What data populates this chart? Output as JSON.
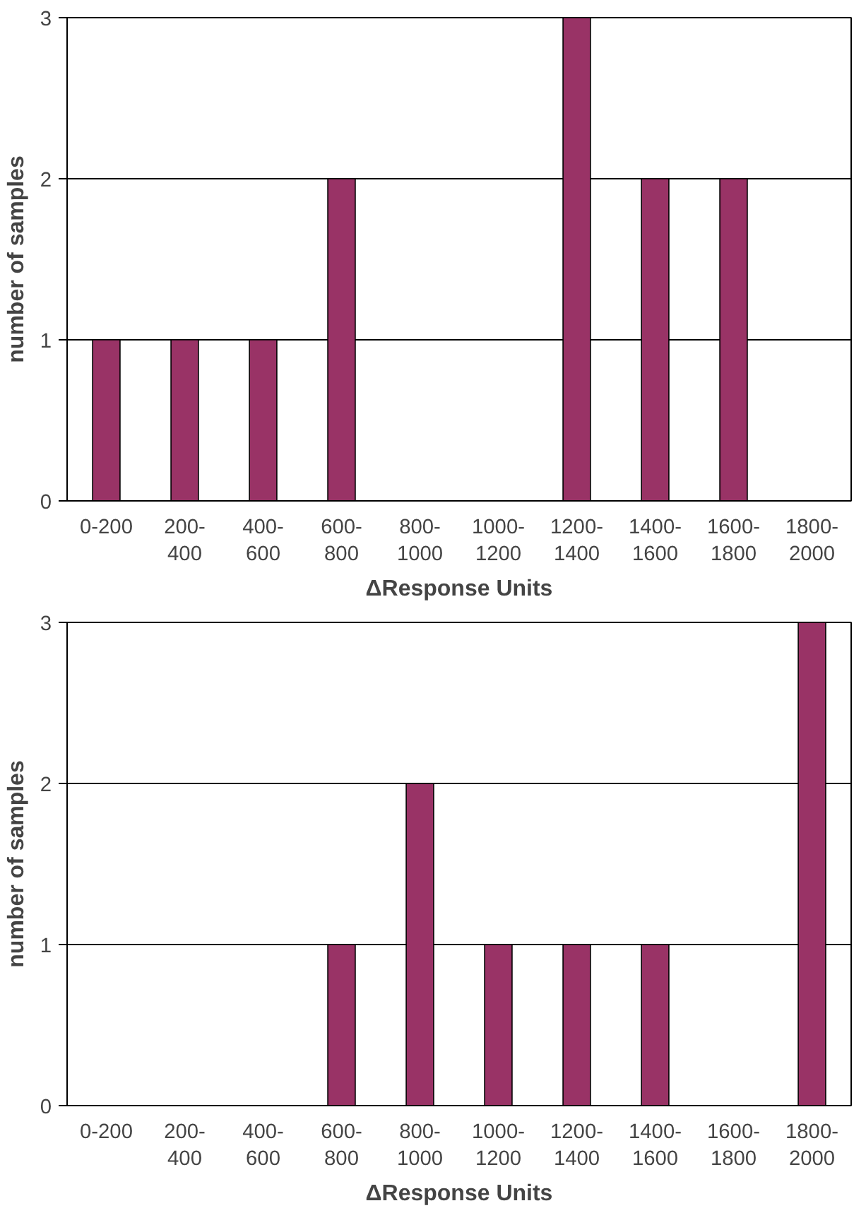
{
  "chart_data": [
    {
      "type": "bar",
      "xlabel": "ΔResponse Units",
      "ylabel": "number of samples",
      "categories": [
        "0-200",
        "200-\n400",
        "400-\n600",
        "600-\n800",
        "800-\n1000",
        "1000-\n1200",
        "1200-\n1400",
        "1400-\n1600",
        "1600-\n1800",
        "1800-\n2000"
      ],
      "values": [
        1,
        1,
        1,
        2,
        0,
        0,
        3,
        2,
        2,
        0
      ],
      "color": "#993366",
      "ylim": [
        0,
        3
      ],
      "yticks": [
        0,
        1,
        2,
        3
      ],
      "grid": "y"
    },
    {
      "type": "bar",
      "xlabel": "ΔResponse Units",
      "ylabel": "number of samples",
      "categories": [
        "0-200",
        "200-\n400",
        "400-\n600",
        "600-\n800",
        "800-\n1000",
        "1000-\n1200",
        "1200-\n1400",
        "1400-\n1600",
        "1600-\n1800",
        "1800-\n2000"
      ],
      "values": [
        0,
        0,
        0,
        1,
        2,
        1,
        1,
        1,
        0,
        3
      ],
      "color": "#993366",
      "ylim": [
        0,
        3
      ],
      "yticks": [
        0,
        1,
        2,
        3
      ],
      "grid": "y"
    }
  ]
}
